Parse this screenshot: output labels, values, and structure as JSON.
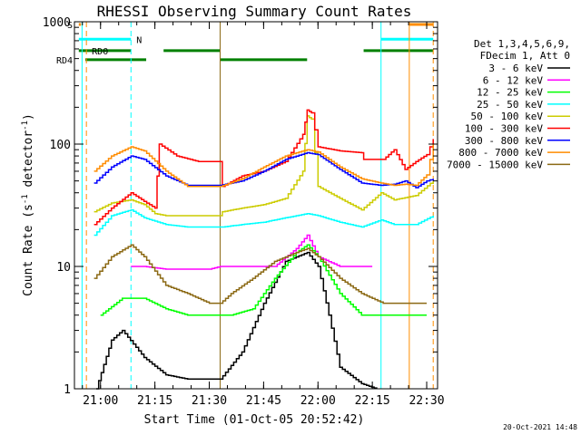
{
  "chart_data": {
    "type": "line",
    "title": "RHESSI Observing Summary Count Rates",
    "xlabel": "Start Time (01-Oct-05 20:52:42)",
    "ylabel_main": "Count Rate (s",
    "ylabel_sup1": "-1",
    "ylabel_mid": " detector",
    "ylabel_sup2": "-1",
    "ylabel_end": ")",
    "y_scale": "log",
    "ylim": [
      1,
      1000
    ],
    "xlim": [
      20.88,
      22.55
    ],
    "x_ticks": [
      {
        "h": 21.0,
        "label": "21:00"
      },
      {
        "h": 21.25,
        "label": "21:15"
      },
      {
        "h": 21.5,
        "label": "21:30"
      },
      {
        "h": 21.75,
        "label": "21:45"
      },
      {
        "h": 22.0,
        "label": "22:00"
      },
      {
        "h": 22.25,
        "label": "22:15"
      },
      {
        "h": 22.5,
        "label": "22:30"
      }
    ],
    "y_ticks": [
      {
        "v": 1,
        "label": "1"
      },
      {
        "v": 10,
        "label": "10"
      },
      {
        "v": 100,
        "label": "100"
      },
      {
        "v": 1000,
        "label": "1000"
      }
    ],
    "legend_header": [
      "Det 1,3,4,5,6,9,",
      "FDecim 1, Att 0"
    ],
    "flags": [
      {
        "label": "S",
        "color": "#ff8c00",
        "level": 950,
        "segments": [
          [
            20.9,
            20.91
          ],
          [
            22.42,
            22.53
          ]
        ]
      },
      {
        "label": "N",
        "color": "#00ffff",
        "level": 720,
        "segments": [
          [
            20.9,
            21.14
          ],
          [
            22.29,
            22.53
          ]
        ]
      },
      {
        "label": "RD0",
        "color": "#008000",
        "level": 580,
        "segments": [
          [
            20.9,
            21.14
          ],
          [
            21.29,
            21.55
          ],
          [
            22.21,
            22.53
          ]
        ]
      },
      {
        "label": "RD4",
        "color": "#008000",
        "level": 490,
        "segments": [
          [
            20.93,
            21.21
          ],
          [
            21.55,
            21.95
          ]
        ]
      }
    ],
    "vlines": [
      {
        "h": 20.915,
        "color": "#00ffff",
        "style": "solid"
      },
      {
        "h": 20.935,
        "color": "#ff8c00",
        "style": "dashed"
      },
      {
        "h": 21.14,
        "color": "#00ffff",
        "style": "dashed"
      },
      {
        "h": 21.55,
        "color": "#8b6914",
        "style": "solid"
      },
      {
        "h": 22.29,
        "color": "#00ffff",
        "style": "solid"
      },
      {
        "h": 22.42,
        "color": "#ff8c00",
        "style": "solid"
      },
      {
        "h": 22.53,
        "color": "#ff8c00",
        "style": "dashed"
      }
    ],
    "series": [
      {
        "name": "3 - 6 keV",
        "color": "#000000",
        "x": [
          20.98,
          21.05,
          21.1,
          21.2,
          21.3,
          21.4,
          21.55,
          21.65,
          21.75,
          21.85,
          21.95,
          22.0,
          22.05,
          22.1,
          22.2,
          22.27
        ],
        "y": [
          1,
          2.5,
          3,
          1.8,
          1.3,
          1.2,
          1.2,
          2,
          5,
          11,
          13,
          10,
          4,
          1.5,
          1.1,
          1
        ]
      },
      {
        "name": "6 - 12 keV",
        "color": "#ff00ff",
        "x": [
          21.14,
          21.2,
          21.3,
          21.4,
          21.5,
          21.55,
          21.6,
          21.7,
          21.8,
          21.9,
          21.95,
          22.0,
          22.1,
          22.2,
          22.25
        ],
        "y": [
          10,
          10,
          9.5,
          9.5,
          9.5,
          10,
          10,
          10,
          10,
          14,
          18,
          12,
          10,
          10,
          10
        ]
      },
      {
        "name": "12 - 25 keV",
        "color": "#00ff00",
        "x": [
          21.0,
          21.1,
          21.2,
          21.3,
          21.4,
          21.5,
          21.6,
          21.7,
          21.8,
          21.9,
          21.95,
          22.0,
          22.1,
          22.2,
          22.3,
          22.4,
          22.5
        ],
        "y": [
          4,
          5.5,
          5.5,
          4.5,
          4,
          4,
          4,
          4.5,
          8,
          13,
          15,
          12,
          6,
          4,
          4,
          4,
          4
        ]
      },
      {
        "name": "25 - 50 keV",
        "color": "#00ffff",
        "x": [
          20.97,
          21.05,
          21.14,
          21.2,
          21.3,
          21.4,
          21.55,
          21.56,
          21.65,
          21.75,
          21.85,
          21.95,
          22.0,
          22.1,
          22.2,
          22.29,
          22.35,
          22.45,
          22.53
        ],
        "y": [
          18,
          26,
          29,
          25,
          22,
          21,
          21,
          21,
          22,
          23,
          25,
          27,
          26,
          23,
          21,
          24,
          22,
          22,
          26
        ]
      },
      {
        "name": "50 - 100 keV",
        "color": "#cccc00",
        "x": [
          20.97,
          21.05,
          21.14,
          21.2,
          21.25,
          21.3,
          21.4,
          21.55,
          21.56,
          21.65,
          21.75,
          21.85,
          21.93,
          21.95,
          21.97,
          22.0,
          22.1,
          22.2,
          22.29,
          22.35,
          22.45,
          22.53
        ],
        "y": [
          28,
          33,
          35,
          32,
          27,
          26,
          26,
          26,
          28,
          30,
          32,
          36,
          60,
          170,
          160,
          45,
          36,
          29,
          40,
          35,
          38,
          50
        ]
      },
      {
        "name": "100 - 300 keV",
        "color": "#ff0000",
        "x": [
          20.97,
          21.05,
          21.14,
          21.2,
          21.25,
          21.27,
          21.35,
          21.45,
          21.55,
          21.56,
          21.65,
          21.75,
          21.85,
          21.93,
          21.95,
          21.97,
          22.0,
          22.1,
          22.2,
          22.21,
          22.3,
          22.35,
          22.4,
          22.45,
          22.5,
          22.53
        ],
        "y": [
          22,
          30,
          40,
          34,
          30,
          100,
          80,
          72,
          72,
          45,
          55,
          60,
          72,
          120,
          190,
          180,
          95,
          88,
          85,
          75,
          75,
          90,
          62,
          72,
          82,
          110
        ]
      },
      {
        "name": "300 - 800 keV",
        "color": "#0000ff",
        "x": [
          20.97,
          21.05,
          21.14,
          21.2,
          21.3,
          21.4,
          21.55,
          21.65,
          21.75,
          21.85,
          21.95,
          22.0,
          22.1,
          22.2,
          22.29,
          22.35,
          22.4,
          22.45,
          22.5,
          22.53
        ],
        "y": [
          48,
          65,
          80,
          75,
          55,
          46,
          46,
          50,
          60,
          75,
          85,
          82,
          62,
          48,
          46,
          47,
          50,
          44,
          50,
          52
        ]
      },
      {
        "name": "800 - 7000 keV",
        "color": "#ff8c00",
        "x": [
          20.97,
          21.05,
          21.14,
          21.2,
          21.3,
          21.4,
          21.55,
          21.65,
          21.75,
          21.85,
          21.95,
          22.0,
          22.1,
          22.2,
          22.29,
          22.35,
          22.4,
          22.45,
          22.5,
          22.53
        ],
        "y": [
          60,
          80,
          95,
          88,
          60,
          45,
          45,
          52,
          65,
          80,
          90,
          86,
          65,
          52,
          48,
          46,
          47,
          46,
          56,
          100
        ]
      },
      {
        "name": "7000 - 15000 keV",
        "color": "#8b6914",
        "x": [
          20.97,
          21.05,
          21.14,
          21.2,
          21.3,
          21.4,
          21.5,
          21.55,
          21.6,
          21.7,
          21.8,
          21.9,
          21.95,
          22.0,
          22.1,
          22.2,
          22.3,
          22.4,
          22.5
        ],
        "y": [
          8,
          12,
          15,
          12,
          7,
          6,
          5,
          5,
          6,
          8,
          11,
          13,
          14,
          12,
          8,
          6,
          5,
          5,
          5
        ]
      }
    ],
    "grid": false,
    "legend_placement": "right"
  },
  "footer": {
    "timestamp": "20-Oct-2021 14:48"
  }
}
